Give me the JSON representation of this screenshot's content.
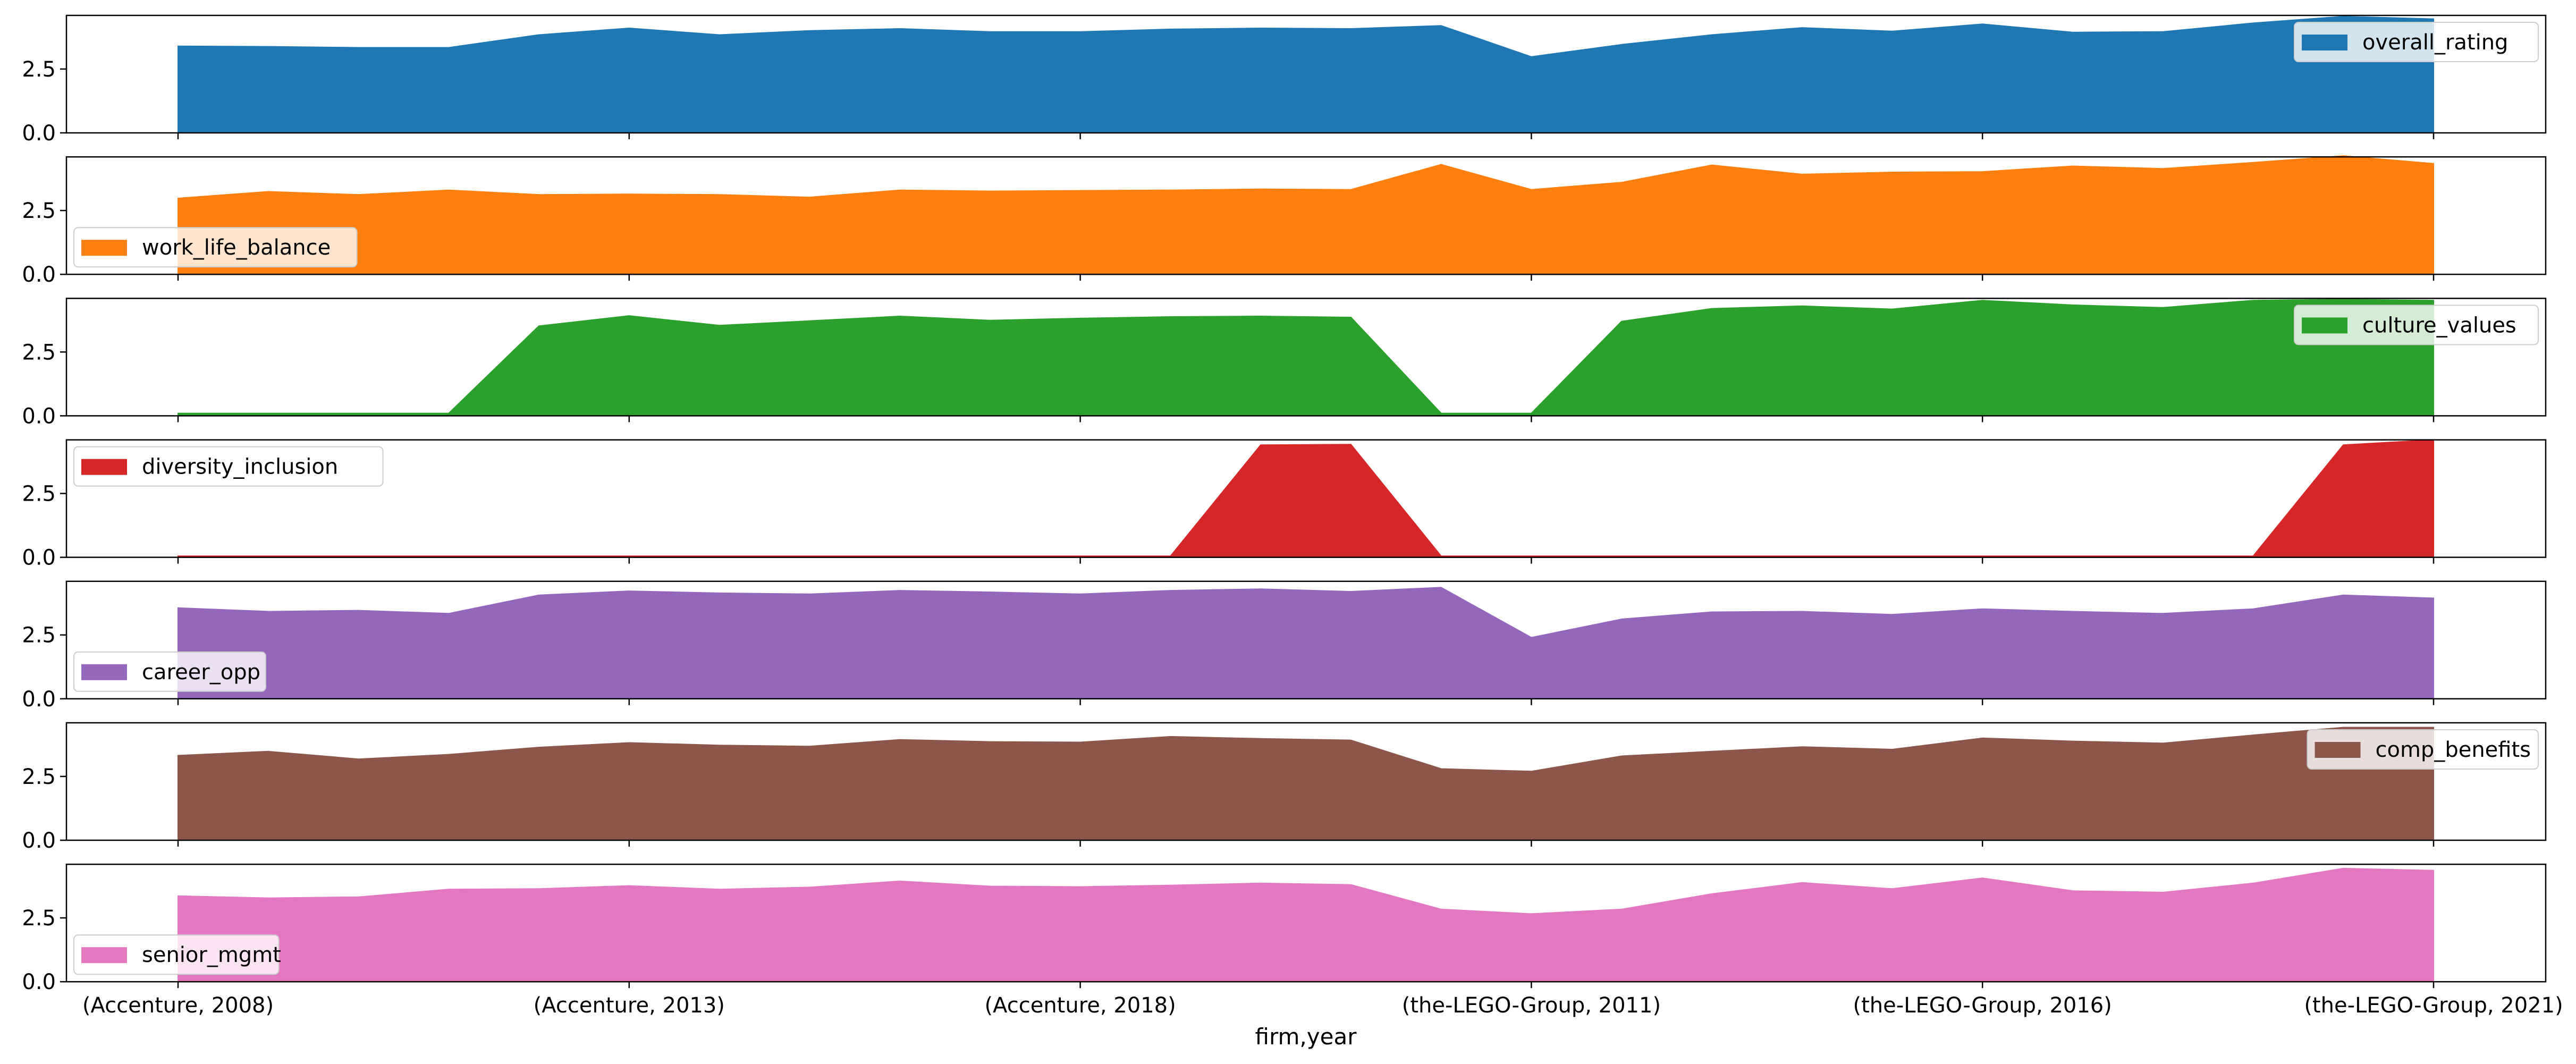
{
  "chart_data": {
    "type": "area",
    "subplots": true,
    "xlabel": "firm,year",
    "x": [
      "(Accenture, 2008)",
      "(Accenture, 2009)",
      "(Accenture, 2010)",
      "(Accenture, 2011)",
      "(Accenture, 2012)",
      "(Accenture, 2013)",
      "(Accenture, 2014)",
      "(Accenture, 2015)",
      "(Accenture, 2016)",
      "(Accenture, 2017)",
      "(Accenture, 2018)",
      "(Accenture, 2019)",
      "(Accenture, 2020)",
      "(Accenture, 2021)",
      "(the-LEGO-Group, 2010)",
      "(the-LEGO-Group, 2011)",
      "(the-LEGO-Group, 2012)",
      "(the-LEGO-Group, 2013)",
      "(the-LEGO-Group, 2014)",
      "(the-LEGO-Group, 2015)",
      "(the-LEGO-Group, 2016)",
      "(the-LEGO-Group, 2017)",
      "(the-LEGO-Group, 2018)",
      "(the-LEGO-Group, 2019)",
      "(the-LEGO-Group, 2020)",
      "(the-LEGO-Group, 2021)"
    ],
    "xticklabels": [
      "(Accenture, 2008)",
      "(Accenture, 2013)",
      "(Accenture, 2018)",
      "(the-LEGO-Group, 2011)",
      "(the-LEGO-Group, 2016)",
      "(the-LEGO-Group, 2021)"
    ],
    "xtick_indices": [
      0,
      5,
      10,
      15,
      20,
      25
    ],
    "yticks": [
      0.0,
      2.5
    ],
    "ylim": [
      0,
      4.6
    ],
    "grid": false,
    "series": [
      {
        "name": "overall_rating",
        "color": "#1f77b4",
        "legend_position": "upper right",
        "values": [
          3.4,
          3.38,
          3.34,
          3.34,
          3.84,
          4.1,
          3.84,
          4.0,
          4.08,
          3.96,
          3.96,
          4.06,
          4.1,
          4.08,
          4.2,
          2.98,
          3.46,
          3.84,
          4.12,
          3.98,
          4.26,
          3.94,
          3.96,
          4.3,
          4.56,
          4.46
        ]
      },
      {
        "name": "work_life_balance",
        "color": "#ff7f0e",
        "legend_position": "lower left",
        "values": [
          2.98,
          3.24,
          3.12,
          3.3,
          3.12,
          3.14,
          3.12,
          3.02,
          3.3,
          3.26,
          3.28,
          3.3,
          3.34,
          3.32,
          4.3,
          3.32,
          3.6,
          4.28,
          3.92,
          4.0,
          4.02,
          4.24,
          4.14,
          4.38,
          4.64,
          4.34
        ]
      },
      {
        "name": "culture_values",
        "color": "#2ca02c",
        "legend_position": "upper right",
        "values": [
          0.1,
          0.1,
          0.1,
          0.1,
          3.52,
          3.92,
          3.54,
          3.72,
          3.9,
          3.74,
          3.82,
          3.88,
          3.9,
          3.86,
          0.1,
          0.1,
          3.7,
          4.2,
          4.3,
          4.18,
          4.52,
          4.34,
          4.24,
          4.52,
          4.56,
          4.52
        ]
      },
      {
        "name": "diversity_inclusion",
        "color": "#d62728",
        "legend_position": "upper left",
        "values": [
          0.05,
          0.05,
          0.05,
          0.05,
          0.05,
          0.05,
          0.05,
          0.05,
          0.05,
          0.05,
          0.05,
          0.05,
          4.4,
          4.42,
          0.05,
          0.05,
          0.05,
          0.05,
          0.05,
          0.05,
          0.05,
          0.05,
          0.05,
          0.05,
          4.4,
          4.6
        ]
      },
      {
        "name": "career_opp",
        "color": "#9467bd",
        "legend_position": "lower left",
        "values": [
          3.56,
          3.42,
          3.46,
          3.34,
          4.06,
          4.22,
          4.14,
          4.1,
          4.24,
          4.18,
          4.1,
          4.24,
          4.3,
          4.2,
          4.36,
          2.4,
          3.12,
          3.4,
          3.42,
          3.3,
          3.52,
          3.42,
          3.34,
          3.52,
          4.06,
          3.94
        ]
      },
      {
        "name": "comp_benefits",
        "color": "#8c564b",
        "legend_position": "upper right",
        "values": [
          3.32,
          3.48,
          3.18,
          3.36,
          3.64,
          3.82,
          3.72,
          3.68,
          3.94,
          3.86,
          3.84,
          4.06,
          3.98,
          3.92,
          2.8,
          2.7,
          3.3,
          3.48,
          3.66,
          3.56,
          4.0,
          3.88,
          3.8,
          4.12,
          4.42,
          4.42
        ]
      },
      {
        "name": "senior_mgmt",
        "color": "#e377c2",
        "legend_position": "lower left",
        "values": [
          3.36,
          3.28,
          3.32,
          3.62,
          3.64,
          3.76,
          3.62,
          3.7,
          3.94,
          3.74,
          3.72,
          3.78,
          3.86,
          3.8,
          2.84,
          2.66,
          2.84,
          3.44,
          3.88,
          3.64,
          4.06,
          3.56,
          3.5,
          3.86,
          4.44,
          4.36
        ]
      }
    ]
  }
}
